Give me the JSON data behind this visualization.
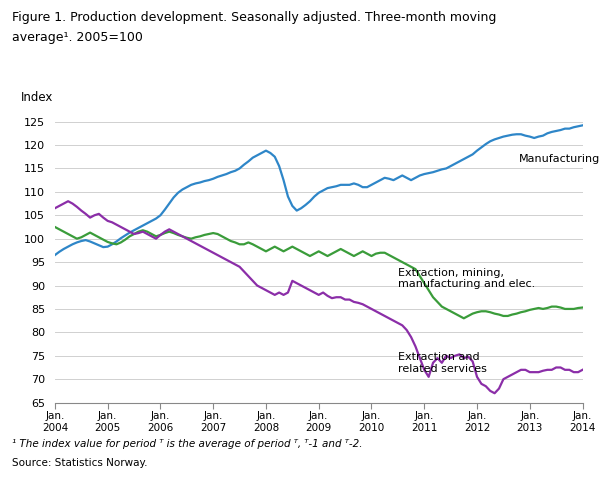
{
  "title_line1": "Figure 1. Production development. Seasonally adjusted. Three-month moving",
  "title_line2": "average¹. 2005=100",
  "ylabel": "Index",
  "ylim": [
    65,
    127
  ],
  "yticks": [
    65,
    70,
    75,
    80,
    85,
    90,
    95,
    100,
    105,
    110,
    115,
    120,
    125
  ],
  "footnote1": "¹ The index value for period ᵀ is the average of period ᵀ, ᵀ-1 and ᵀ-2.",
  "footnote2": "Source: Statistics Norway.",
  "colors": {
    "manufacturing": "#2e86c8",
    "extraction_mining": "#3a9c3a",
    "extraction_services": "#8b2ea8"
  },
  "label_manufacturing": "Manufacturing",
  "label_extraction_mining": "Extraction, mining,\nmanufacturing and elec.",
  "label_extraction_services": "Extraction and\nrelated services",
  "manufacturing": [
    96.5,
    97.2,
    97.8,
    98.3,
    98.8,
    99.2,
    99.5,
    99.7,
    99.4,
    99.0,
    98.6,
    98.2,
    98.3,
    98.8,
    99.4,
    100.1,
    100.7,
    101.3,
    101.8,
    102.3,
    102.8,
    103.3,
    103.8,
    104.3,
    105.0,
    106.2,
    107.5,
    108.8,
    109.8,
    110.5,
    111.0,
    111.5,
    111.8,
    112.0,
    112.3,
    112.5,
    112.8,
    113.2,
    113.5,
    113.8,
    114.2,
    114.5,
    115.0,
    115.8,
    116.5,
    117.3,
    117.8,
    118.3,
    118.8,
    118.3,
    117.5,
    115.5,
    112.5,
    109.0,
    107.0,
    106.0,
    106.5,
    107.2,
    108.0,
    109.0,
    109.8,
    110.3,
    110.8,
    111.0,
    111.2,
    111.5,
    111.5,
    111.5,
    111.8,
    111.5,
    111.0,
    111.0,
    111.5,
    112.0,
    112.5,
    113.0,
    112.8,
    112.5,
    113.0,
    113.5,
    113.0,
    112.5,
    113.0,
    113.5,
    113.8,
    114.0,
    114.2,
    114.5,
    114.8,
    115.0,
    115.5,
    116.0,
    116.5,
    117.0,
    117.5,
    118.0,
    118.8,
    119.5,
    120.2,
    120.8,
    121.2,
    121.5,
    121.8,
    122.0,
    122.2,
    122.3,
    122.3,
    122.0,
    121.8,
    121.5,
    121.8,
    122.0,
    122.5,
    122.8,
    123.0,
    123.2,
    123.5,
    123.5,
    123.8,
    124.0,
    124.2
  ],
  "extraction_mining": [
    102.5,
    102.0,
    101.5,
    101.0,
    100.5,
    100.0,
    100.3,
    100.8,
    101.3,
    100.8,
    100.3,
    99.8,
    99.3,
    99.0,
    98.8,
    99.2,
    99.8,
    100.5,
    101.0,
    101.5,
    101.8,
    101.5,
    101.0,
    100.5,
    100.8,
    101.2,
    101.5,
    101.2,
    100.8,
    100.5,
    100.2,
    100.0,
    100.3,
    100.5,
    100.8,
    101.0,
    101.2,
    101.0,
    100.5,
    100.0,
    99.5,
    99.2,
    98.8,
    98.8,
    99.2,
    98.8,
    98.3,
    97.8,
    97.3,
    97.8,
    98.3,
    97.8,
    97.3,
    97.8,
    98.3,
    97.8,
    97.3,
    96.8,
    96.3,
    96.8,
    97.3,
    96.8,
    96.3,
    96.8,
    97.3,
    97.8,
    97.3,
    96.8,
    96.3,
    96.8,
    97.3,
    96.8,
    96.3,
    96.8,
    97.0,
    97.0,
    96.5,
    96.0,
    95.5,
    95.0,
    94.5,
    94.0,
    93.5,
    92.0,
    90.5,
    89.0,
    87.5,
    86.5,
    85.5,
    85.0,
    84.5,
    84.0,
    83.5,
    83.0,
    83.5,
    84.0,
    84.3,
    84.5,
    84.5,
    84.3,
    84.0,
    83.8,
    83.5,
    83.5,
    83.8,
    84.0,
    84.3,
    84.5,
    84.8,
    85.0,
    85.2,
    85.0,
    85.2,
    85.5,
    85.5,
    85.3,
    85.0,
    85.0,
    85.0,
    85.2,
    85.3
  ],
  "extraction_services": [
    106.5,
    107.0,
    107.5,
    108.0,
    107.5,
    106.8,
    106.0,
    105.3,
    104.5,
    105.0,
    105.3,
    104.5,
    103.8,
    103.5,
    103.0,
    102.5,
    102.0,
    101.5,
    101.0,
    101.2,
    101.5,
    101.0,
    100.5,
    100.0,
    100.8,
    101.5,
    102.0,
    101.5,
    101.0,
    100.5,
    100.0,
    99.5,
    99.0,
    98.5,
    98.0,
    97.5,
    97.0,
    96.5,
    96.0,
    95.5,
    95.0,
    94.5,
    94.0,
    93.0,
    92.0,
    91.0,
    90.0,
    89.5,
    89.0,
    88.5,
    88.0,
    88.5,
    88.0,
    88.5,
    91.0,
    90.5,
    90.0,
    89.5,
    89.0,
    88.5,
    88.0,
    88.5,
    87.8,
    87.3,
    87.5,
    87.5,
    87.0,
    87.0,
    86.5,
    86.3,
    86.0,
    85.5,
    85.0,
    84.5,
    84.0,
    83.5,
    83.0,
    82.5,
    82.0,
    81.5,
    80.5,
    79.0,
    77.0,
    74.5,
    72.0,
    70.5,
    73.5,
    74.5,
    73.5,
    75.0,
    74.5,
    75.0,
    75.3,
    74.5,
    74.8,
    73.8,
    70.5,
    69.0,
    68.5,
    67.5,
    67.0,
    68.0,
    70.0,
    70.5,
    71.0,
    71.5,
    72.0,
    72.0,
    71.5,
    71.5,
    71.5,
    71.8,
    72.0,
    72.0,
    72.5,
    72.5,
    72.0,
    72.0,
    71.5,
    71.5,
    72.0
  ]
}
